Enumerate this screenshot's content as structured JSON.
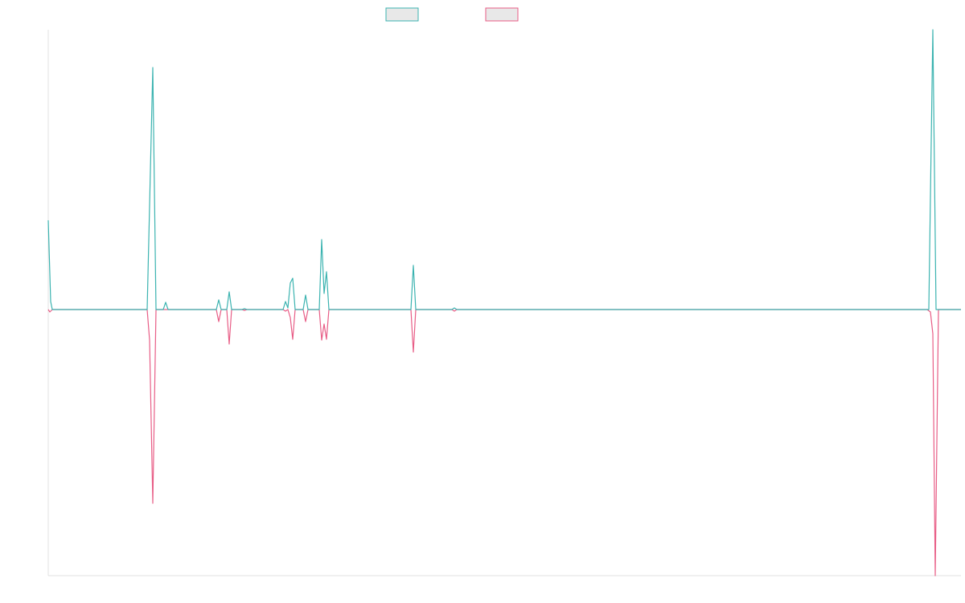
{
  "chart_data": {
    "type": "line",
    "xlim": [
      0,
      1135
    ],
    "ylim": [
      -331,
      348
    ],
    "series": [
      {
        "color": "#3bb3b0",
        "x": [
          0,
          3,
          5,
          123,
          130,
          134,
          143,
          146,
          149,
          209,
          212,
          215,
          222,
          225,
          228,
          241,
          244,
          247,
          292,
          295,
          298,
          301,
          304,
          307,
          317,
          320,
          323,
          337,
          340,
          343,
          346,
          349,
          451,
          454,
          457,
          502,
          505,
          508,
          1095,
          1100,
          1104,
          1135
        ],
        "values": [
          111,
          10,
          0,
          0,
          301,
          0,
          0,
          9,
          0,
          0,
          12,
          0,
          0,
          22,
          0,
          0,
          1,
          0,
          0,
          10,
          2,
          33,
          39,
          0,
          0,
          18,
          0,
          0,
          87,
          20,
          47,
          0,
          0,
          55,
          0,
          0,
          2,
          0,
          0,
          348,
          0,
          0
        ]
      },
      {
        "color": "#e85d86",
        "x": [
          0,
          2,
          5,
          123,
          126,
          130,
          134,
          209,
          212,
          215,
          222,
          225,
          228,
          241,
          244,
          247,
          292,
          295,
          298,
          301,
          304,
          307,
          317,
          320,
          323,
          337,
          340,
          343,
          346,
          349,
          451,
          454,
          457,
          502,
          505,
          508,
          1093,
          1097,
          1100,
          1103,
          1107,
          1135
        ],
        "values": [
          0,
          -3,
          0,
          0,
          -38,
          -241,
          0,
          0,
          -15,
          0,
          0,
          -43,
          0,
          0,
          -1,
          0,
          0,
          -2,
          0,
          -10,
          -37,
          0,
          0,
          -15,
          0,
          0,
          -38,
          -18,
          -37,
          0,
          0,
          -53,
          0,
          0,
          -2,
          0,
          0,
          -3,
          -30,
          -331,
          0,
          0
        ]
      }
    ]
  }
}
